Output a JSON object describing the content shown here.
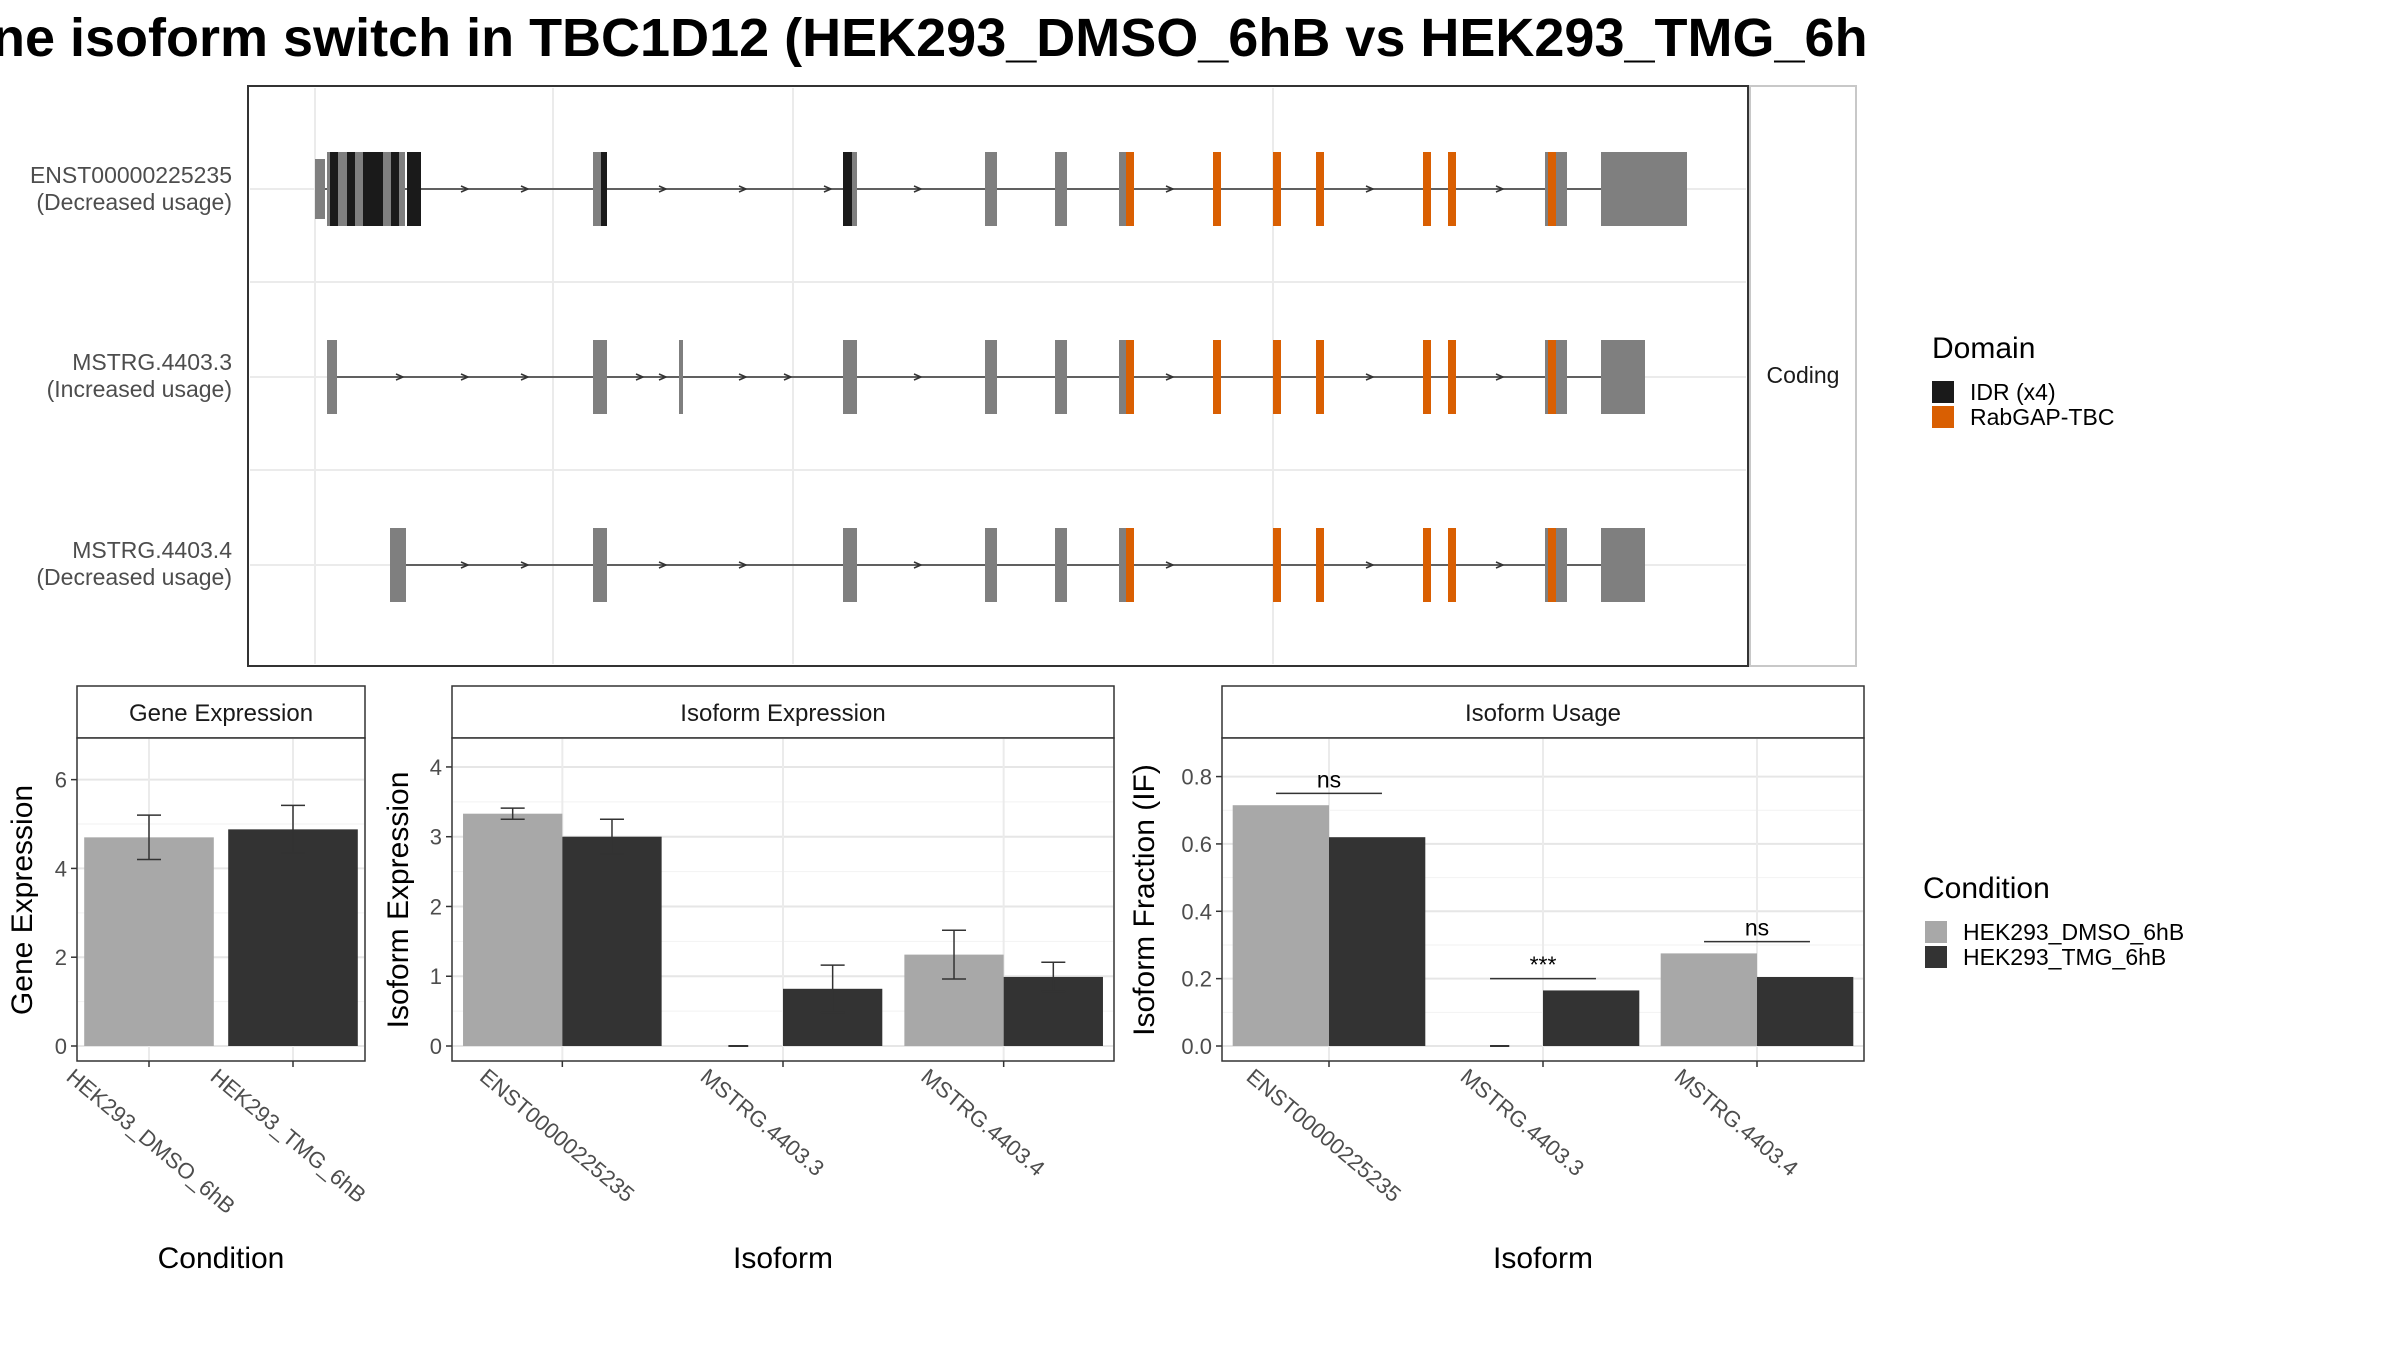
{
  "title": "ne isoform switch in TBC1D12 (HEK293_DMSO_6hB vs HEK293_TMG_6h",
  "colors": {
    "idr": "#1a1a1a",
    "rabgap": "#d95f02",
    "exon": "#7f7f7f",
    "dmso": "#a8a8a8",
    "tmg": "#333333"
  },
  "legends": {
    "domain": {
      "title": "Domain",
      "items": [
        {
          "label": "IDR (x4)",
          "color": "#1a1a1a"
        },
        {
          "label": "RabGAP-TBC",
          "color": "#d95f02"
        }
      ]
    },
    "condition": {
      "title": "Condition",
      "items": [
        {
          "label": "HEK293_DMSO_6hB",
          "color": "#a8a8a8"
        },
        {
          "label": "HEK293_TMG_6hB",
          "color": "#333333"
        }
      ]
    }
  },
  "chart_data": [
    {
      "type": "gene-structure",
      "facet_label": "Coding",
      "transcripts": [
        {
          "name": "ENST00000225235",
          "usage": "(Decreased usage)"
        },
        {
          "name": "MSTRG.4403.3",
          "usage": "(Increased usage)"
        },
        {
          "name": "MSTRG.4403.4",
          "usage": "(Decreased usage)"
        }
      ]
    },
    {
      "type": "bar",
      "panel_title": "Gene Expression",
      "xlabel": "Condition",
      "ylabel": "Gene Expression",
      "ylim": [
        0,
        6.6
      ],
      "yticks": [
        0,
        2,
        4,
        6
      ],
      "categories": [
        "HEK293_DMSO_6hB",
        "HEK293_TMG_6hB"
      ],
      "values": [
        4.7,
        4.88
      ],
      "errors": [
        [
          4.2,
          5.2
        ],
        [
          4.35,
          5.42
        ]
      ]
    },
    {
      "type": "bar",
      "panel_title": "Isoform Expression",
      "xlabel": "Isoform",
      "ylabel": "Isoform Expression",
      "ylim": [
        0,
        4.2
      ],
      "yticks": [
        0,
        1,
        2,
        3,
        4
      ],
      "categories": [
        "ENST00000225235",
        "MSTRG.4403.3",
        "MSTRG.4403.4"
      ],
      "series": [
        {
          "name": "HEK293_DMSO_6hB",
          "values": [
            3.33,
            0.0,
            1.31
          ],
          "errors": [
            [
              3.25,
              3.41
            ],
            [
              0,
              0
            ],
            [
              0.96,
              1.66
            ]
          ]
        },
        {
          "name": "HEK293_TMG_6hB",
          "values": [
            3.0,
            0.82,
            0.99
          ],
          "errors": [
            [
              2.75,
              3.25
            ],
            [
              0.48,
              1.16
            ],
            [
              0.78,
              1.2
            ]
          ]
        }
      ]
    },
    {
      "type": "bar",
      "panel_title": "Isoform Usage",
      "xlabel": "Isoform",
      "ylabel": "Isoform Fraction (IF)",
      "ylim": [
        0,
        0.87
      ],
      "yticks": [
        0.0,
        0.2,
        0.4,
        0.6,
        0.8
      ],
      "ytick_labels": [
        "0.0",
        "0.2",
        "0.4",
        "0.6",
        "0.8"
      ],
      "categories": [
        "ENST00000225235",
        "MSTRG.4403.3",
        "MSTRG.4403.4"
      ],
      "series": [
        {
          "name": "HEK293_DMSO_6hB",
          "values": [
            0.715,
            0.0,
            0.275
          ]
        },
        {
          "name": "HEK293_TMG_6hB",
          "values": [
            0.62,
            0.165,
            0.205
          ]
        }
      ],
      "significance": [
        "ns",
        "***",
        "ns"
      ],
      "sig_levels": [
        0.75,
        0.2,
        0.31
      ]
    }
  ]
}
